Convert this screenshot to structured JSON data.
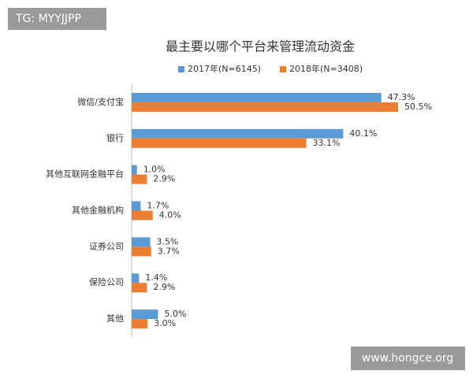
{
  "chart_data": {
    "type": "hbar",
    "title": "最主要以哪个平台来管理流动资金",
    "categories": [
      "微信/支付宝",
      "银行",
      "其他互联网金融平台",
      "其他金融机构",
      "证券公司",
      "保险公司",
      "其他"
    ],
    "series": [
      {
        "name": "2017年(N=6145)",
        "color": "#5b9bd5",
        "values": [
          47.3,
          40.1,
          1.0,
          1.7,
          3.5,
          1.4,
          5.0
        ],
        "value_labels": [
          "47.3%",
          "40.1%",
          "1.0%",
          "1.7%",
          "3.5%",
          "1.4%",
          "5.0%"
        ]
      },
      {
        "name": "2018年(N=3408)",
        "color": "#ed7d31",
        "values": [
          50.5,
          33.1,
          2.9,
          4.0,
          3.7,
          2.9,
          3.0
        ],
        "value_labels": [
          "50.5%",
          "33.1%",
          "2.9%",
          "4.0%",
          "3.7%",
          "2.9%",
          "3.0%"
        ]
      }
    ],
    "legend": "top"
  },
  "overlays": {
    "top_left": "TG: MYYJJPP",
    "bottom_right": "www.hongce.org"
  }
}
